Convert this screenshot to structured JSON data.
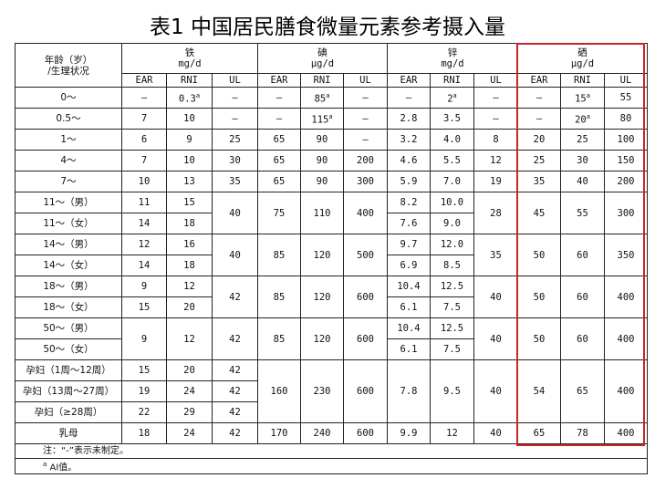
{
  "title": "表1  中国居民膳食微量元素参考摄入量",
  "header": {
    "age_label": "年龄（岁）",
    "age_label2": "/生理状况",
    "groups": [
      {
        "name": "铁",
        "unit": "mg/d"
      },
      {
        "name": "碘",
        "unit": "μg/d"
      },
      {
        "name": "锌",
        "unit": "mg/d"
      },
      {
        "name": "硒",
        "unit": "μg/d"
      }
    ],
    "sub": [
      "EAR",
      "RNI",
      "UL",
      "EAR",
      "RNI",
      "UL",
      "EAR",
      "RNI",
      "UL",
      "EAR",
      "RNI",
      "UL"
    ]
  },
  "highlight_color": "#c8262a",
  "rows": [
    {
      "cells": [
        {
          "t": "0～",
          "age": 1
        },
        {
          "t": "—"
        },
        {
          "t": "0.3",
          "sup": "a"
        },
        {
          "t": "—"
        },
        {
          "t": "—"
        },
        {
          "t": "85",
          "sup": "a"
        },
        {
          "t": "—"
        },
        {
          "t": "—"
        },
        {
          "t": "2",
          "sup": "a"
        },
        {
          "t": "—"
        },
        {
          "t": "—"
        },
        {
          "t": "15",
          "sup": "a"
        },
        {
          "t": "55"
        }
      ]
    },
    {
      "cells": [
        {
          "t": "0.5～",
          "age": 1
        },
        {
          "t": "7"
        },
        {
          "t": "10"
        },
        {
          "t": "—"
        },
        {
          "t": "—"
        },
        {
          "t": "115",
          "sup": "a"
        },
        {
          "t": "—"
        },
        {
          "t": "2.8"
        },
        {
          "t": "3.5"
        },
        {
          "t": "—"
        },
        {
          "t": "—"
        },
        {
          "t": "20",
          "sup": "a"
        },
        {
          "t": "80"
        }
      ]
    },
    {
      "cells": [
        {
          "t": "1～",
          "age": 1
        },
        {
          "t": "6"
        },
        {
          "t": "9"
        },
        {
          "t": "25"
        },
        {
          "t": "65"
        },
        {
          "t": "90"
        },
        {
          "t": "—"
        },
        {
          "t": "3.2"
        },
        {
          "t": "4.0"
        },
        {
          "t": "8"
        },
        {
          "t": "20"
        },
        {
          "t": "25"
        },
        {
          "t": "100"
        }
      ]
    },
    {
      "cells": [
        {
          "t": "4～",
          "age": 1
        },
        {
          "t": "7"
        },
        {
          "t": "10"
        },
        {
          "t": "30"
        },
        {
          "t": "65"
        },
        {
          "t": "90"
        },
        {
          "t": "200"
        },
        {
          "t": "4.6"
        },
        {
          "t": "5.5"
        },
        {
          "t": "12"
        },
        {
          "t": "25"
        },
        {
          "t": "30"
        },
        {
          "t": "150"
        }
      ]
    },
    {
      "cells": [
        {
          "t": "7～",
          "age": 1
        },
        {
          "t": "10"
        },
        {
          "t": "13"
        },
        {
          "t": "35"
        },
        {
          "t": "65"
        },
        {
          "t": "90"
        },
        {
          "t": "300"
        },
        {
          "t": "5.9"
        },
        {
          "t": "7.0"
        },
        {
          "t": "19"
        },
        {
          "t": "35"
        },
        {
          "t": "40"
        },
        {
          "t": "200"
        }
      ]
    },
    {
      "cells": [
        {
          "t": "11～（男）",
          "age": 1
        },
        {
          "t": "11"
        },
        {
          "t": "15"
        },
        {
          "t": "40",
          "rs": 2
        },
        {
          "t": "75",
          "rs": 2
        },
        {
          "t": "110",
          "rs": 2
        },
        {
          "t": "400",
          "rs": 2
        },
        {
          "t": "8.2"
        },
        {
          "t": "10.0"
        },
        {
          "t": "28",
          "rs": 2
        },
        {
          "t": "45",
          "rs": 2
        },
        {
          "t": "55",
          "rs": 2
        },
        {
          "t": "300",
          "rs": 2
        }
      ]
    },
    {
      "cells": [
        {
          "t": "11～（女）",
          "age": 1
        },
        {
          "t": "14"
        },
        {
          "t": "18"
        },
        {
          "t": "7.6"
        },
        {
          "t": "9.0"
        }
      ]
    },
    {
      "cells": [
        {
          "t": "14～（男）",
          "age": 1
        },
        {
          "t": "12"
        },
        {
          "t": "16"
        },
        {
          "t": "40",
          "rs": 2
        },
        {
          "t": "85",
          "rs": 2
        },
        {
          "t": "120",
          "rs": 2
        },
        {
          "t": "500",
          "rs": 2
        },
        {
          "t": "9.7"
        },
        {
          "t": "12.0"
        },
        {
          "t": "35",
          "rs": 2
        },
        {
          "t": "50",
          "rs": 2
        },
        {
          "t": "60",
          "rs": 2
        },
        {
          "t": "350",
          "rs": 2
        }
      ]
    },
    {
      "cells": [
        {
          "t": "14～（女）",
          "age": 1
        },
        {
          "t": "14"
        },
        {
          "t": "18"
        },
        {
          "t": "6.9"
        },
        {
          "t": "8.5"
        }
      ]
    },
    {
      "cells": [
        {
          "t": "18～（男）",
          "age": 1
        },
        {
          "t": "9"
        },
        {
          "t": "12"
        },
        {
          "t": "42",
          "rs": 2
        },
        {
          "t": "85",
          "rs": 2
        },
        {
          "t": "120",
          "rs": 2
        },
        {
          "t": "600",
          "rs": 2
        },
        {
          "t": "10.4"
        },
        {
          "t": "12.5"
        },
        {
          "t": "40",
          "rs": 2
        },
        {
          "t": "50",
          "rs": 2
        },
        {
          "t": "60",
          "rs": 2
        },
        {
          "t": "400",
          "rs": 2
        }
      ]
    },
    {
      "cells": [
        {
          "t": "18～（女）",
          "age": 1
        },
        {
          "t": "15"
        },
        {
          "t": "20"
        },
        {
          "t": "6.1"
        },
        {
          "t": "7.5"
        }
      ]
    },
    {
      "cells": [
        {
          "t": "50～（男）",
          "age": 1
        },
        {
          "t": "9",
          "rs": 2
        },
        {
          "t": "12",
          "rs": 2
        },
        {
          "t": "42",
          "rs": 2
        },
        {
          "t": "85",
          "rs": 2
        },
        {
          "t": "120",
          "rs": 2
        },
        {
          "t": "600",
          "rs": 2
        },
        {
          "t": "10.4"
        },
        {
          "t": "12.5"
        },
        {
          "t": "40",
          "rs": 2
        },
        {
          "t": "50",
          "rs": 2
        },
        {
          "t": "60",
          "rs": 2
        },
        {
          "t": "400",
          "rs": 2
        }
      ]
    },
    {
      "cells": [
        {
          "t": "50～（女）",
          "age": 1
        },
        {
          "t": "6.1"
        },
        {
          "t": "7.5"
        }
      ]
    },
    {
      "cells": [
        {
          "t": "孕妇（1周～12周）",
          "age": 1
        },
        {
          "t": "15"
        },
        {
          "t": "20"
        },
        {
          "t": "42"
        },
        {
          "t": "160",
          "rs": 3
        },
        {
          "t": "230",
          "rs": 3
        },
        {
          "t": "600",
          "rs": 3
        },
        {
          "t": "7.8",
          "rs": 3
        },
        {
          "t": "9.5",
          "rs": 3
        },
        {
          "t": "40",
          "rs": 3
        },
        {
          "t": "54",
          "rs": 3
        },
        {
          "t": "65",
          "rs": 3
        },
        {
          "t": "400",
          "rs": 3
        }
      ]
    },
    {
      "cells": [
        {
          "t": "孕妇（13周～27周）",
          "age": 1
        },
        {
          "t": "19"
        },
        {
          "t": "24"
        },
        {
          "t": "42"
        }
      ]
    },
    {
      "cells": [
        {
          "t": "孕妇（≥28周）",
          "age": 1
        },
        {
          "t": "22"
        },
        {
          "t": "29"
        },
        {
          "t": "42"
        }
      ]
    },
    {
      "cells": [
        {
          "t": "乳母",
          "age": 1
        },
        {
          "t": "18"
        },
        {
          "t": "24"
        },
        {
          "t": "42"
        },
        {
          "t": "170"
        },
        {
          "t": "240"
        },
        {
          "t": "600"
        },
        {
          "t": "9.9"
        },
        {
          "t": "12"
        },
        {
          "t": "40"
        },
        {
          "t": "65"
        },
        {
          "t": "78"
        },
        {
          "t": "400"
        }
      ]
    }
  ],
  "notes": [
    {
      "sup": "",
      "text": "注：“-”表示未制定。"
    },
    {
      "sup": "a",
      "text": " AI值。"
    }
  ]
}
